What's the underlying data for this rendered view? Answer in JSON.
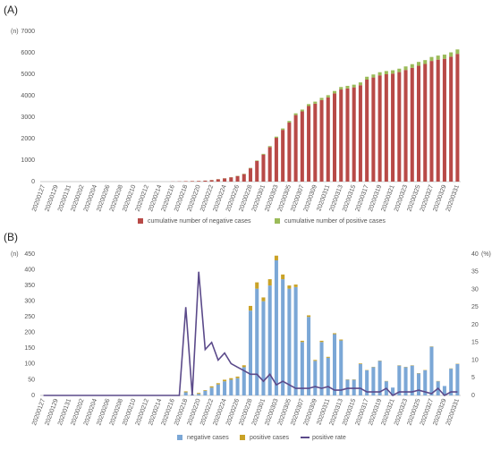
{
  "chart_data": [
    {
      "type": "bar",
      "panel_label": "(A)",
      "y_label": "(n)",
      "stacked": true,
      "grid": false,
      "categories": [
        "20200127",
        null,
        "20200129",
        null,
        "20200131",
        null,
        "20200202",
        null,
        "20200204",
        null,
        "20200206",
        null,
        "20200208",
        null,
        "20200210",
        null,
        "20200212",
        null,
        "20200214",
        null,
        "20200216",
        null,
        "20200218",
        null,
        "20200220",
        null,
        "20200222",
        null,
        "20200224",
        null,
        "20200226",
        null,
        "20200228",
        null,
        "20200301",
        null,
        "20200303",
        null,
        "20200305",
        null,
        "20200307",
        null,
        "20200309",
        null,
        "20200311",
        null,
        "20200313",
        null,
        "20200315",
        null,
        "20200317",
        null,
        "20200319",
        null,
        "20200321",
        null,
        "20200323",
        null,
        "20200325",
        null,
        "20200327",
        null,
        "20200329",
        null,
        "20200331"
      ],
      "series": [
        {
          "name": "cumulative number of negative cases",
          "color": "#b84a47",
          "values": [
            0,
            0,
            0,
            0,
            0,
            0,
            0,
            0,
            0,
            0,
            0,
            0,
            0,
            0,
            0,
            0,
            0,
            0,
            0,
            0,
            5,
            10,
            20,
            25,
            30,
            45,
            70,
            110,
            150,
            200,
            260,
            350,
            620,
            960,
            1260,
            1610,
            2040,
            2410,
            2750,
            3100,
            3270,
            3520,
            3630,
            3800,
            3920,
            4110,
            4290,
            4340,
            4390,
            4490,
            4750,
            4850,
            4950,
            5000,
            5030,
            5100,
            5200,
            5300,
            5400,
            5480,
            5620,
            5680,
            5720,
            5820,
            5950
          ]
        },
        {
          "name": "cumulative number of positive cases",
          "color": "#9bbb59",
          "values": [
            0,
            0,
            0,
            0,
            0,
            0,
            0,
            0,
            0,
            0,
            0,
            0,
            0,
            0,
            0,
            0,
            0,
            0,
            0,
            0,
            0,
            0,
            1,
            2,
            3,
            4,
            5,
            6,
            7,
            9,
            12,
            15,
            20,
            25,
            35,
            45,
            55,
            65,
            75,
            80,
            85,
            90,
            95,
            100,
            105,
            110,
            115,
            120,
            125,
            130,
            135,
            140,
            145,
            150,
            155,
            160,
            165,
            170,
            175,
            180,
            185,
            190,
            195,
            200,
            205
          ]
        }
      ],
      "ylim": [
        0,
        7000
      ],
      "yticks": [
        0,
        1000,
        2000,
        3000,
        4000,
        5000,
        6000,
        7000
      ]
    },
    {
      "type": "bar",
      "panel_label": "(B)",
      "y_label": "(n)",
      "y2_label": "(%)",
      "stacked": true,
      "grid": false,
      "categories": [
        "20200127",
        null,
        "20200129",
        null,
        "20200131",
        null,
        "20200202",
        null,
        "20200204",
        null,
        "20200206",
        null,
        "20200208",
        null,
        "20200210",
        null,
        "20200212",
        null,
        "20200214",
        null,
        "20200216",
        null,
        "20200218",
        null,
        "20200220",
        null,
        "20200222",
        null,
        "20200224",
        null,
        "20200226",
        null,
        "20200228",
        null,
        "20200301",
        null,
        "20200303",
        null,
        "20200305",
        null,
        "20200307",
        null,
        "20200309",
        null,
        "20200311",
        null,
        "20200313",
        null,
        "20200315",
        null,
        "20200317",
        null,
        "20200319",
        null,
        "20200321",
        null,
        "20200323",
        null,
        "20200325",
        null,
        "20200327",
        null,
        "20200329",
        null,
        "20200331"
      ],
      "series": [
        {
          "name": "negative cases",
          "color": "#7ba7d6",
          "values": [
            0,
            0,
            0,
            0,
            0,
            0,
            0,
            0,
            0,
            0,
            0,
            0,
            0,
            0,
            0,
            0,
            0,
            0,
            0,
            0,
            0,
            0,
            10,
            3,
            5,
            15,
            25,
            35,
            45,
            50,
            55,
            90,
            270,
            340,
            300,
            350,
            430,
            370,
            340,
            345,
            170,
            250,
            110,
            170,
            120,
            195,
            175,
            50,
            50,
            100,
            80,
            90,
            110,
            45,
            25,
            95,
            90,
            95,
            70,
            80,
            155,
            45,
            30,
            85,
            100
          ]
        },
        {
          "name": "positive cases",
          "color": "#c9a227",
          "values": [
            0,
            0,
            0,
            0,
            0,
            0,
            0,
            0,
            0,
            0,
            0,
            0,
            0,
            0,
            0,
            0,
            0,
            0,
            0,
            0,
            0,
            0,
            3,
            0,
            3,
            2,
            4,
            4,
            5,
            5,
            5,
            6,
            15,
            20,
            12,
            20,
            15,
            15,
            10,
            8,
            4,
            5,
            3,
            4,
            3,
            3,
            3,
            1,
            1,
            2,
            1,
            1,
            1,
            1,
            0,
            1,
            1,
            1,
            1,
            1,
            1,
            1,
            0,
            1,
            1
          ]
        },
        {
          "name": "positive rate",
          "color": "#5b4a8a",
          "type": "line",
          "axis": "y2",
          "values": [
            0,
            0,
            0,
            0,
            0,
            0,
            0,
            0,
            0,
            0,
            0,
            0,
            0,
            0,
            0,
            0,
            0,
            0,
            0,
            0,
            0,
            0,
            25,
            0,
            35,
            13,
            15,
            10,
            12,
            9,
            8,
            7,
            6,
            6,
            4,
            6,
            3,
            4,
            3,
            2,
            2,
            2,
            2.5,
            2,
            2.5,
            1.5,
            1.5,
            2,
            2,
            2,
            1,
            1,
            1,
            2,
            0,
            1,
            1,
            1,
            1.5,
            1,
            0.5,
            2,
            0,
            1,
            1
          ]
        }
      ],
      "ylim": [
        0,
        450
      ],
      "yticks": [
        0,
        50,
        100,
        150,
        200,
        250,
        300,
        350,
        400,
        450
      ],
      "y2lim": [
        0,
        40
      ],
      "y2ticks": [
        0,
        5,
        10,
        15,
        20,
        25,
        30,
        35,
        40
      ]
    }
  ]
}
